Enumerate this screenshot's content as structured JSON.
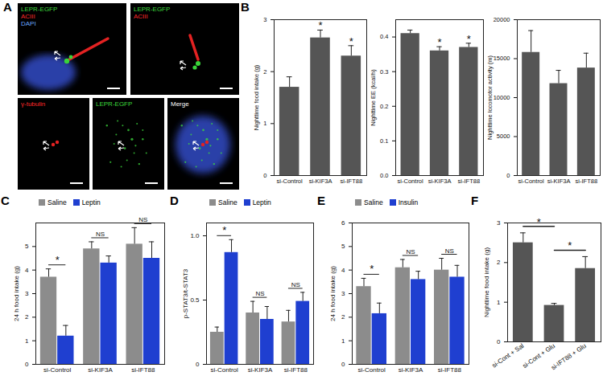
{
  "image_panel": {
    "panel_label": "A",
    "images": [
      {
        "labels": [
          {
            "text": "LEPR-EGFP",
            "color": "#3ddc3d"
          },
          {
            "text": "ACIII",
            "color": "#ff2a2a"
          },
          {
            "text": "DAPI",
            "color": "#6aa8ff"
          }
        ]
      },
      {
        "labels": [
          {
            "text": "LEPR-EGFP",
            "color": "#3ddc3d"
          },
          {
            "text": "ACIII",
            "color": "#ff2a2a"
          }
        ]
      },
      {
        "labels": [
          {
            "text": "γ-tubulin",
            "color": "#ff2a2a"
          }
        ]
      },
      {
        "labels": [
          {
            "text": "LEPR-EGFP",
            "color": "#3ddc3d"
          }
        ]
      },
      {
        "labels": [
          {
            "text": "Merge",
            "color": "#ffffff"
          }
        ]
      }
    ]
  },
  "chart_data": [
    {
      "panel_label": "B",
      "type": "bar",
      "y_label": "Nighttime food intake (g)",
      "categories": [
        "si-Control",
        "si-KIF3A",
        "si-IFT88"
      ],
      "values": [
        1.7,
        2.65,
        2.3
      ],
      "error": [
        0.2,
        0.15,
        0.2
      ],
      "color": "#555555",
      "ylim": [
        0,
        3
      ],
      "yticks": [
        0,
        1,
        2,
        3
      ],
      "annotations": [
        null,
        "*",
        "*"
      ]
    },
    {
      "type": "bar",
      "y_label": "Nighttime EE (kcal/h)",
      "categories": [
        "si-Control",
        "si-KIF3A",
        "si-IFT88"
      ],
      "values": [
        0.41,
        0.36,
        0.37
      ],
      "error": [
        0.01,
        0.012,
        0.012
      ],
      "color": "#555555",
      "ylim": [
        0,
        0.45
      ],
      "yticks": [
        {
          "value": 0,
          "label": "0.0"
        },
        0.1,
        0.2,
        0.3,
        0.4
      ],
      "annotations": [
        null,
        "*",
        "*"
      ]
    },
    {
      "type": "bar",
      "y_label": "Nighttime locomotor activity (m)",
      "categories": [
        "si-Control",
        "si-KIF3A",
        "si-IFT88"
      ],
      "values": [
        15800,
        11800,
        13800
      ],
      "error": [
        2800,
        1700,
        1900
      ],
      "color": "#555555",
      "ylim": [
        0,
        20000
      ],
      "yticks": [
        0,
        5000,
        10000,
        15000,
        20000
      ]
    },
    {
      "panel_label": "C",
      "type": "bar",
      "y_label": "24 h food intake (g)",
      "categories": [
        "si-Control",
        "si-KIF3A",
        "si-IFT88"
      ],
      "series": [
        {
          "name": "Saline",
          "color": "#8c8c8c",
          "values": [
            3.7,
            4.9,
            5.1
          ],
          "error": [
            0.35,
            0.3,
            0.7
          ]
        },
        {
          "name": "Leptin",
          "color": "#1f3fd0",
          "values": [
            1.2,
            4.3,
            4.5
          ],
          "error": [
            0.45,
            0.3,
            0.7
          ]
        }
      ],
      "ylim": [
        0,
        6
      ],
      "yticks": [
        0,
        1,
        2,
        3,
        4,
        5
      ],
      "legend": "top-left",
      "comparisons": [
        {
          "category": "si-Control",
          "label": "*"
        },
        {
          "category": "si-KIF3A",
          "label": "NS"
        },
        {
          "category": "si-IFT88",
          "label": "NS"
        }
      ]
    },
    {
      "panel_label": "D",
      "type": "bar",
      "y_label": "p-STAT3/t-STAT3",
      "categories": [
        "si-Control",
        "si-KIF3A",
        "si-IFT88"
      ],
      "series": [
        {
          "name": "Saline",
          "color": "#8c8c8c",
          "values": [
            0.25,
            0.4,
            0.33
          ],
          "error": [
            0.04,
            0.09,
            0.09
          ]
        },
        {
          "name": "Leptin",
          "color": "#1f3fd0",
          "values": [
            0.87,
            0.35,
            0.49
          ],
          "error": [
            0.1,
            0.1,
            0.07
          ]
        }
      ],
      "ylim": [
        0,
        1.1
      ],
      "yticks": [
        0,
        0.5,
        {
          "value": 1,
          "label": "1.0"
        }
      ],
      "legend": "top-left",
      "comparisons": [
        {
          "category": "si-Control",
          "label": "*"
        },
        {
          "category": "si-KIF3A",
          "label": "NS"
        },
        {
          "category": "si-IFT88",
          "label": "NS"
        }
      ]
    },
    {
      "panel_label": "E",
      "type": "bar",
      "y_label": "24 h food intake (g)",
      "categories": [
        "si-Control",
        "si-KIF3A",
        "si-IFT88"
      ],
      "series": [
        {
          "name": "Saline",
          "color": "#8c8c8c",
          "values": [
            3.3,
            4.1,
            4.0
          ],
          "error": [
            0.35,
            0.35,
            0.5
          ]
        },
        {
          "name": "Insulin",
          "color": "#1f3fd0",
          "values": [
            2.15,
            3.6,
            3.7
          ],
          "error": [
            0.45,
            0.35,
            0.5
          ]
        }
      ],
      "ylim": [
        0,
        6
      ],
      "yticks": [
        0,
        1,
        2,
        3,
        4,
        5,
        6
      ],
      "legend": "top-left",
      "comparisons": [
        {
          "category": "si-Control",
          "label": "*"
        },
        {
          "category": "si-KIF3A",
          "label": "NS"
        },
        {
          "category": "si-IFT88",
          "label": "NS"
        }
      ]
    },
    {
      "panel_label": "F",
      "type": "bar",
      "y_label": "Nighttime food intake (g)",
      "categories": [
        "si-Cont + Sal",
        "si-Cont + Glu",
        "si-IFT88 + Glu"
      ],
      "values": [
        2.5,
        0.92,
        1.85
      ],
      "error": [
        0.25,
        0.05,
        0.3
      ],
      "color": "#555555",
      "ylim": [
        0,
        3
      ],
      "yticks": [
        0,
        1,
        2,
        3
      ],
      "comparisons": [
        {
          "from": "si-Cont + Sal",
          "to": "si-Cont + Glu",
          "label": "*"
        },
        {
          "from": "si-Cont + Glu",
          "to": "si-IFT88 + Glu",
          "label": "*"
        }
      ]
    }
  ]
}
